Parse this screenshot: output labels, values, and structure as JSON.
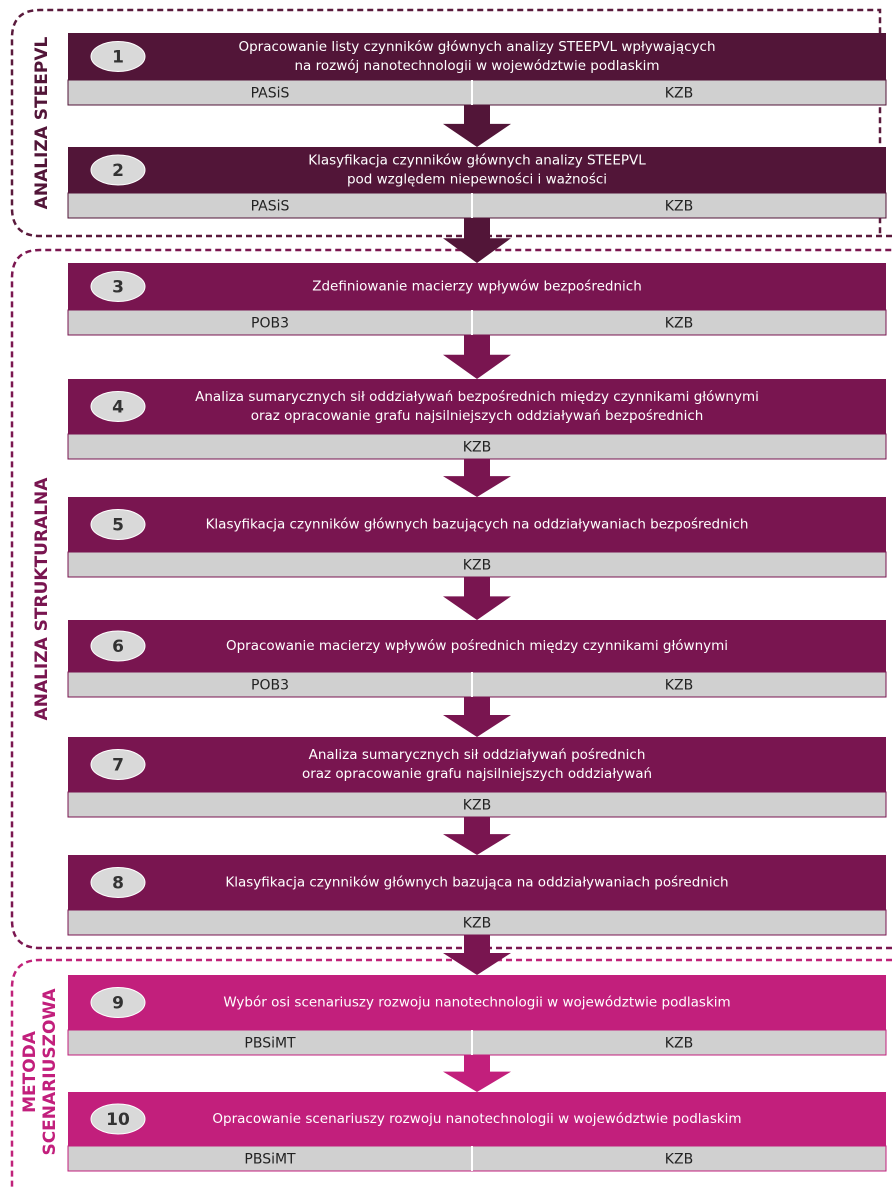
{
  "sections": [
    {
      "lines": [
        "ANALIZA STEEPVL"
      ]
    },
    {
      "lines": [
        "ANALIZA STRUKTURALNA"
      ]
    },
    {
      "lines": [
        "METODA",
        "SCENARIUSZOWA"
      ]
    }
  ],
  "steps": [
    {
      "number": "1",
      "lines": [
        "Opracowanie listy czynników głównych analizy STEEPVL wpływających",
        "na rozwój nanotechnologii w województwie podlaskim"
      ],
      "parties": [
        "PASiS",
        "KZB"
      ]
    },
    {
      "number": "2",
      "lines": [
        "Klasyfikacja czynników głównych analizy STEEPVL",
        "pod względem niepewności i ważności"
      ],
      "parties": [
        "PASiS",
        "KZB"
      ]
    },
    {
      "number": "3",
      "lines": [
        "Zdefiniowanie macierzy wpływów bezpośrednich"
      ],
      "parties": [
        "POB3",
        "KZB"
      ]
    },
    {
      "number": "4",
      "lines": [
        "Analiza sumarycznych sił oddziaływań bezpośrednich między czynnikami głównymi",
        "oraz opracowanie grafu najsilniejszych oddziaływań bezpośrednich"
      ],
      "parties": [
        "KZB"
      ]
    },
    {
      "number": "5",
      "lines": [
        "Klasyfikacja czynników głównych bazujących na oddziaływaniach bezpośrednich"
      ],
      "parties": [
        "KZB"
      ]
    },
    {
      "number": "6",
      "lines": [
        "Opracowanie macierzy wpływów pośrednich między czynnikami głównymi"
      ],
      "parties": [
        "POB3",
        "KZB"
      ]
    },
    {
      "number": "7",
      "lines": [
        "Analiza sumarycznych sił oddziaływań pośrednich",
        "oraz opracowanie grafu najsilniejszych oddziaływań"
      ],
      "parties": [
        "KZB"
      ]
    },
    {
      "number": "8",
      "lines": [
        "Klasyfikacja czynników głównych bazująca na oddziaływaniach pośrednich"
      ],
      "parties": [
        "KZB"
      ]
    },
    {
      "number": "9",
      "lines": [
        "Wybór osi scenariuszy rozwoju nanotechnologii w województwie podlaskim"
      ],
      "parties": [
        "PBSiMT",
        "KZB"
      ]
    },
    {
      "number": "10",
      "lines": [
        "Opracowanie scenariuszy rozwoju nanotechnologii w województwie podlaskim"
      ],
      "parties": [
        "PBSiMT",
        "KZB"
      ]
    }
  ]
}
